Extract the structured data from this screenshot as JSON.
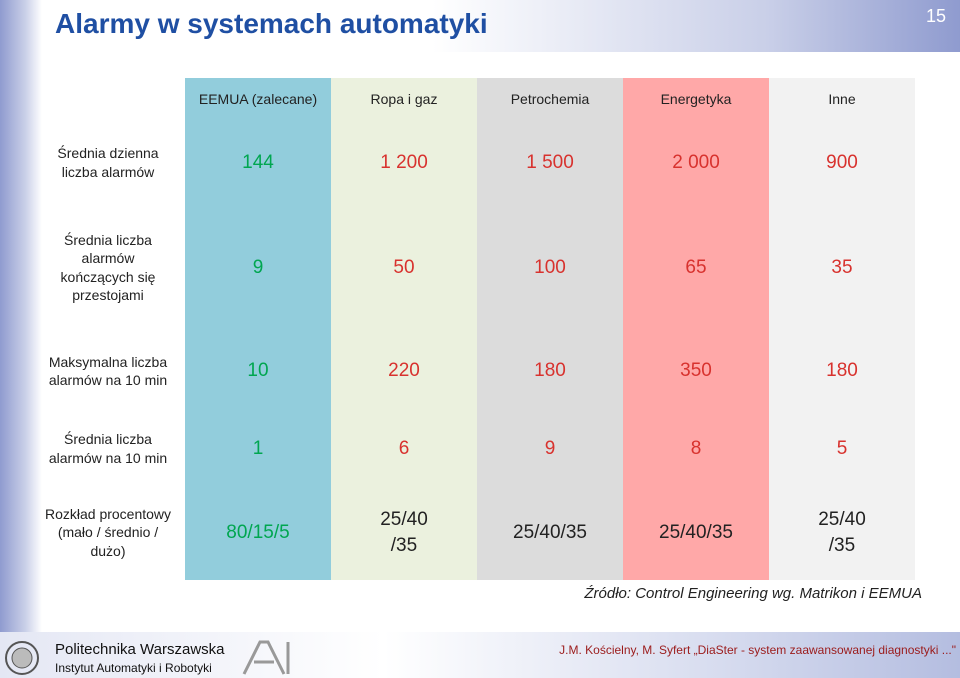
{
  "header": {
    "title": "Alarmy w systemach automatyki",
    "page_number": "15"
  },
  "table": {
    "columns": [
      "EEMUA (zalecane)",
      "Ropa i gaz",
      "Petrochemia",
      "Energetyka",
      "Inne"
    ],
    "rows": [
      {
        "label": "Średnia dzienna\nliczba alarmów",
        "cells": [
          "144",
          "1 200",
          "1 500",
          "2 000",
          "900"
        ]
      },
      {
        "label": "Średnia liczba\nalarmów\nkończących się\nprzestojami",
        "cells": [
          "9",
          "50",
          "100",
          "65",
          "35"
        ]
      },
      {
        "label": "Maksymalna liczba\nalarmów na 10 min",
        "cells": [
          "10",
          "220",
          "180",
          "350",
          "180"
        ]
      },
      {
        "label": "Średnia liczba\nalarmów na 10 min",
        "cells": [
          "1",
          "6",
          "9",
          "8",
          "5"
        ]
      },
      {
        "label": "Rozkład procentowy\n(mało / średnio /\ndużo)",
        "cells": [
          "80/15/5",
          "25/40\n/35",
          "25/40/35",
          "25/40/35",
          "25/40\n/35"
        ]
      }
    ]
  },
  "source": "Źródło: Control Engineering wg. Matrikon i EEMUA",
  "footer": {
    "university": "Politechnika Warszawska",
    "institute": "Instytut Automatyki i Robotyki",
    "authors": "J.M. Kościelny, M. Syfert „DiaSter - system zaawansowanej diagnostyki ...\""
  }
}
